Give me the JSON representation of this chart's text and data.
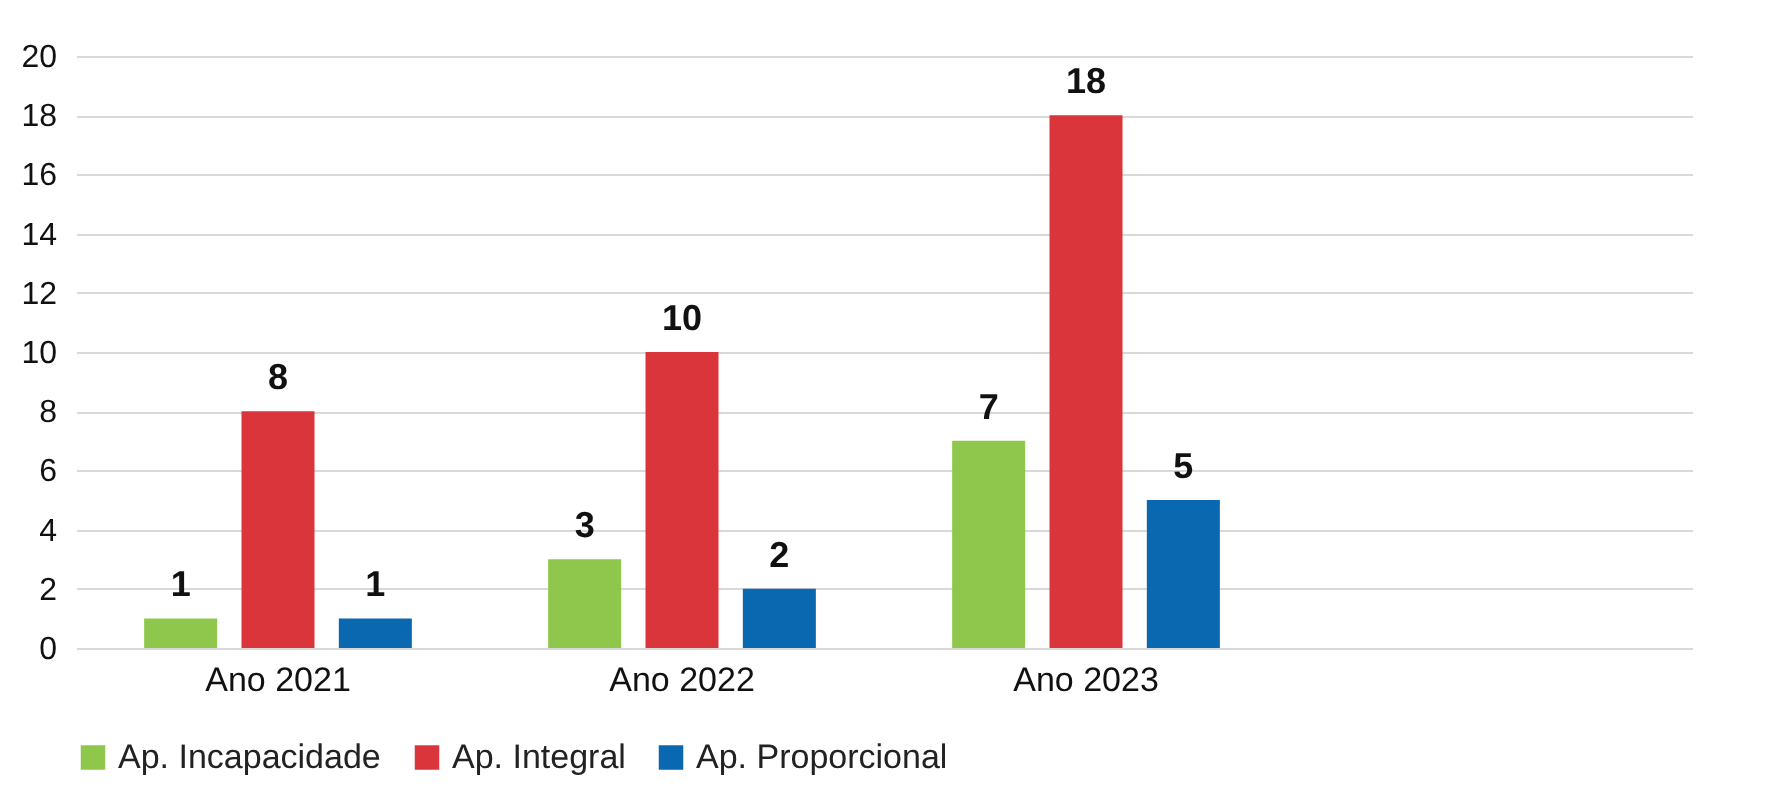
{
  "chart_data": {
    "type": "bar",
    "categories": [
      "Ano 2021",
      "Ano 2022",
      "Ano 2023",
      null
    ],
    "series": [
      {
        "name": "Ap. Incapacidade",
        "color": "#8fc74c",
        "values": [
          1,
          3,
          7,
          null
        ]
      },
      {
        "name": "Ap. Integral",
        "color": "#d9353a",
        "values": [
          8,
          10,
          18,
          null
        ]
      },
      {
        "name": "Ap. Proporcional",
        "color": "#0a68b0",
        "values": [
          1,
          2,
          5,
          null
        ]
      }
    ],
    "ylim": [
      0,
      20
    ],
    "yticks": [
      0,
      2,
      4,
      6,
      8,
      10,
      12,
      14,
      16,
      18,
      20
    ],
    "grid": "y",
    "legend": "bottom",
    "data_labels": true
  }
}
